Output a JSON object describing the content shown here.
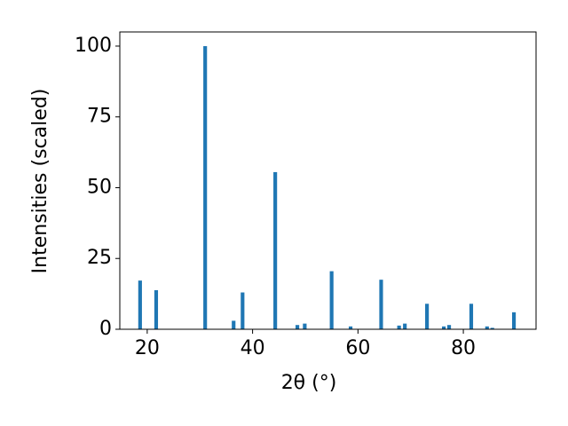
{
  "chart_data": {
    "type": "bar",
    "xlabel": "2θ (°)",
    "ylabel": "Intensities (scaled)",
    "x": [
      18.65,
      21.7,
      31.0,
      36.4,
      38.1,
      44.3,
      48.5,
      49.9,
      55.0,
      58.6,
      64.4,
      67.8,
      68.9,
      73.1,
      76.3,
      77.3,
      81.5,
      84.5,
      85.5,
      89.6
    ],
    "values": [
      17.2,
      13.8,
      100,
      3,
      13,
      55.5,
      1.5,
      2,
      20.5,
      1,
      17.5,
      1.3,
      2,
      9,
      1,
      1.5,
      9,
      1,
      0.5,
      6
    ],
    "color": "#1f77b4",
    "bar_width": 0.7,
    "xlim": [
      14.8,
      93.8
    ],
    "xticks": [
      20,
      40,
      60,
      80
    ],
    "ylim": [
      0,
      105
    ],
    "yticks": [
      0,
      25,
      50,
      75,
      100
    ]
  }
}
